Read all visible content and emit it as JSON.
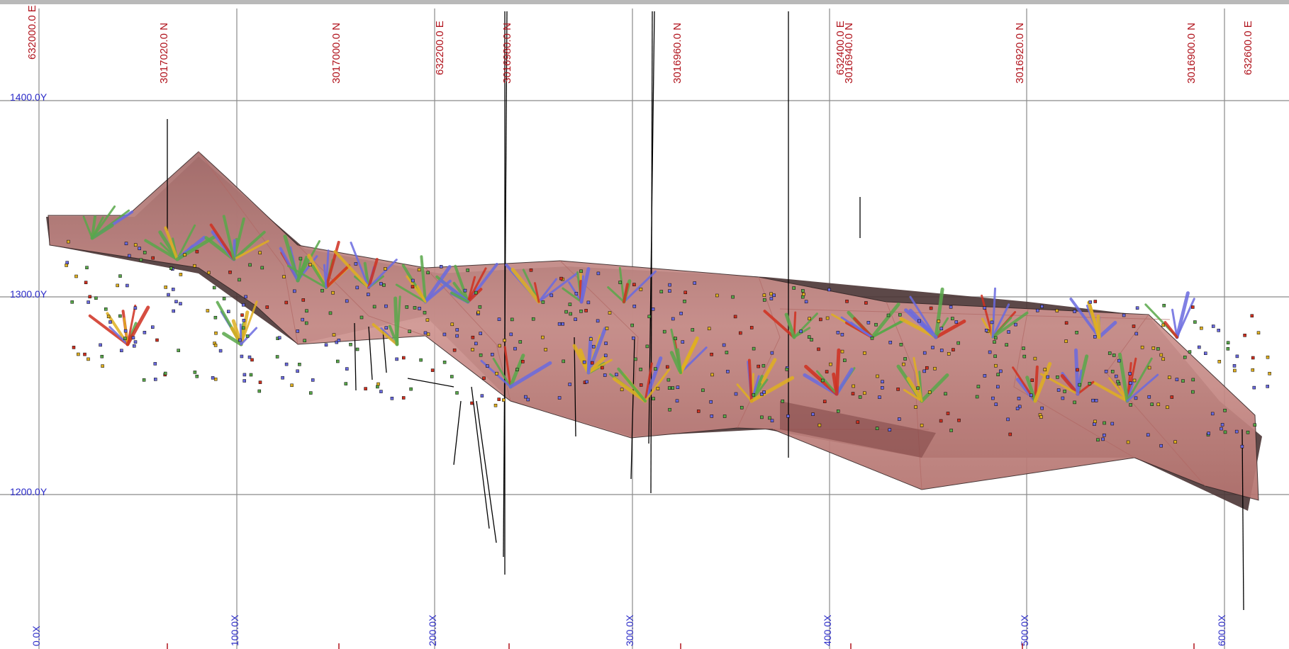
{
  "view": {
    "background": "#ffffff",
    "grid_color": "#8a8a8a",
    "easting_label_color": "#b0121b",
    "northing_label_color": "#b0121b",
    "local_label_color": "#2a2ac8",
    "solid_color": "#c98a86",
    "solid_edge_color": "#3b2a2a"
  },
  "top_labels": [
    {
      "text": "632000.0 E"
    },
    {
      "text": "3017020.0 N"
    },
    {
      "text": "3017000.0 N"
    },
    {
      "text": "632200.0 E"
    },
    {
      "text": "3016980.0 N"
    },
    {
      "text": "3016960.0 N"
    },
    {
      "text": "632400.0 E"
    },
    {
      "text": "3016940.0 N"
    },
    {
      "text": "3016920.0 N"
    },
    {
      "text": "3016900.0 N"
    },
    {
      "text": "632600.0 E"
    }
  ],
  "y_labels": [
    {
      "text": "1400.0Y"
    },
    {
      "text": "1300.0Y"
    },
    {
      "text": "1200.0Y"
    }
  ],
  "x_labels": [
    {
      "text": "0.0X"
    },
    {
      "text": "100.0X"
    },
    {
      "text": "200.0X"
    },
    {
      "text": "300.0X"
    },
    {
      "text": "400.0X"
    },
    {
      "text": "500.0X"
    },
    {
      "text": "600.0X"
    }
  ],
  "legend_colors": {
    "trace_low": "#6a6ae0",
    "trace_mid": "#59a84a",
    "trace_high": "#e0b020",
    "trace_peak": "#d03020",
    "collar": "#000000"
  }
}
